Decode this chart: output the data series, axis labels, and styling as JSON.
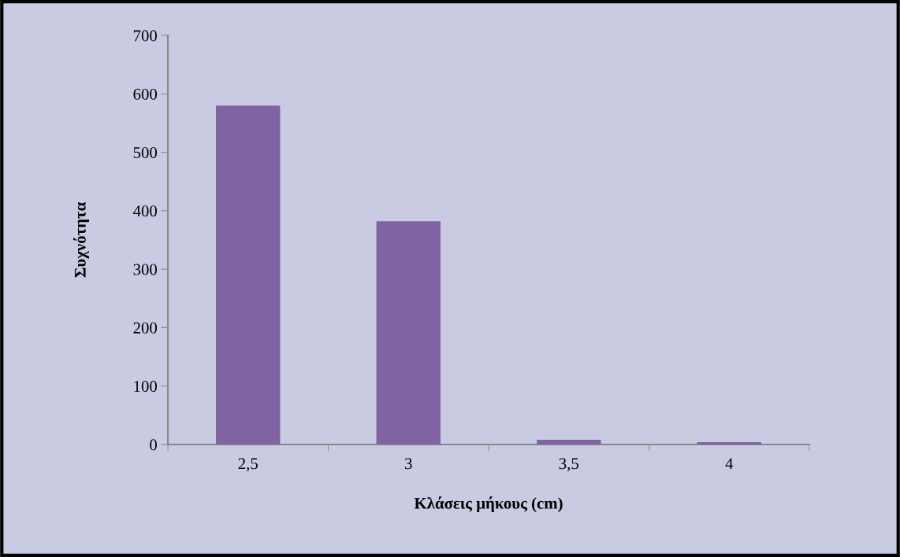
{
  "chart_data": {
    "type": "bar",
    "xlabel": "Κλάσεις μήκους (cm)",
    "ylabel": "Συχνότητα",
    "categories": [
      "2,5",
      "3",
      "3,5",
      "4"
    ],
    "values": [
      580,
      382,
      8,
      4
    ],
    "color": "#8064a2",
    "ylim": [
      0,
      700
    ],
    "yticks": [
      0,
      100,
      200,
      300,
      400,
      500,
      600,
      700
    ],
    "grid": false,
    "legend": false
  }
}
